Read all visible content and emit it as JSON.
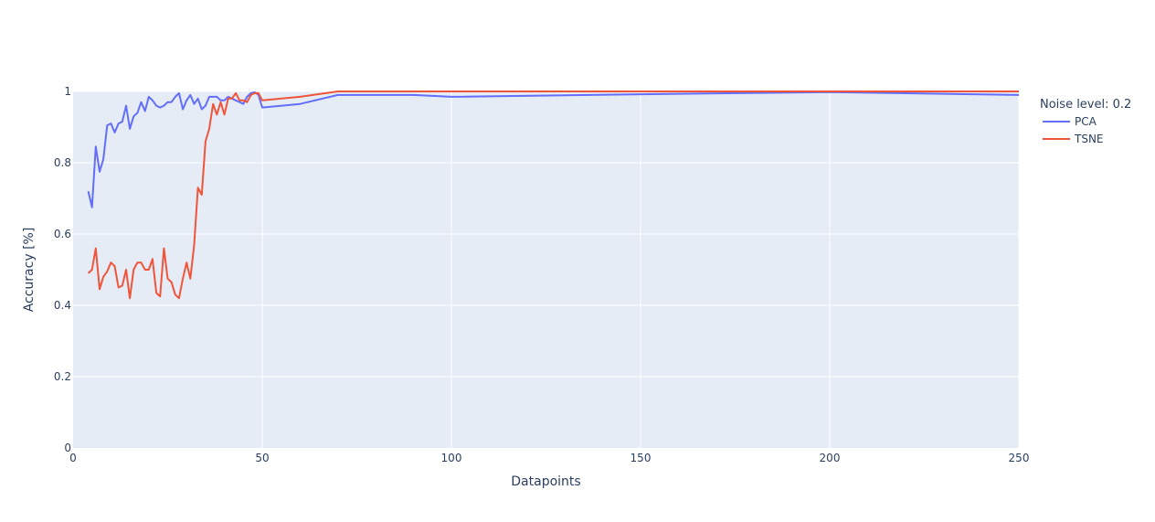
{
  "chart_data": {
    "type": "line",
    "title": "",
    "xlabel": "Datapoints",
    "ylabel": "Accuracy [%]",
    "xlim": [
      0,
      250
    ],
    "ylim": [
      0,
      1
    ],
    "x_ticks": [
      "0",
      "50",
      "100",
      "150",
      "200",
      "250"
    ],
    "y_ticks": [
      "0",
      "0.2",
      "0.4",
      "0.6",
      "0.8",
      "1"
    ],
    "grid": true,
    "legend": {
      "title": "Noise level: 0.2",
      "placement": "right"
    },
    "colors": {
      "background": "#e5ecf6",
      "grid": "#ffffff",
      "axis_text": "#2a3f5f"
    },
    "series": [
      {
        "name": "PCA",
        "color": "#636efa",
        "x": [
          4,
          5,
          6,
          7,
          8,
          9,
          10,
          11,
          12,
          13,
          14,
          15,
          16,
          17,
          18,
          19,
          20,
          21,
          22,
          23,
          24,
          25,
          26,
          27,
          28,
          29,
          30,
          31,
          32,
          33,
          34,
          35,
          36,
          37,
          38,
          39,
          40,
          41,
          42,
          43,
          44,
          45,
          46,
          47,
          48,
          49,
          50,
          60,
          70,
          80,
          90,
          100,
          150,
          200,
          250
        ],
        "y": [
          0.72,
          0.675,
          0.845,
          0.775,
          0.81,
          0.905,
          0.91,
          0.885,
          0.91,
          0.915,
          0.96,
          0.895,
          0.93,
          0.94,
          0.97,
          0.945,
          0.985,
          0.975,
          0.96,
          0.955,
          0.96,
          0.97,
          0.97,
          0.985,
          0.995,
          0.95,
          0.975,
          0.99,
          0.965,
          0.98,
          0.95,
          0.96,
          0.985,
          0.985,
          0.985,
          0.975,
          0.975,
          0.985,
          0.98,
          0.975,
          0.97,
          0.965,
          0.985,
          0.995,
          0.998,
          0.99,
          0.955,
          0.965,
          0.99,
          0.99,
          0.99,
          0.985,
          0.992,
          0.998,
          0.99
        ]
      },
      {
        "name": "TSNE",
        "color": "#ef553b",
        "x": [
          4,
          5,
          6,
          7,
          8,
          9,
          10,
          11,
          12,
          13,
          14,
          15,
          16,
          17,
          18,
          19,
          20,
          21,
          22,
          23,
          24,
          25,
          26,
          27,
          28,
          29,
          30,
          31,
          32,
          33,
          34,
          35,
          36,
          37,
          38,
          39,
          40,
          41,
          42,
          43,
          44,
          45,
          46,
          47,
          48,
          49,
          50,
          60,
          70,
          80,
          90,
          100,
          150,
          200,
          250
        ],
        "y": [
          0.49,
          0.5,
          0.56,
          0.445,
          0.48,
          0.495,
          0.52,
          0.51,
          0.45,
          0.455,
          0.5,
          0.42,
          0.5,
          0.52,
          0.52,
          0.5,
          0.5,
          0.53,
          0.435,
          0.425,
          0.56,
          0.475,
          0.465,
          0.43,
          0.42,
          0.475,
          0.52,
          0.475,
          0.57,
          0.73,
          0.71,
          0.86,
          0.895,
          0.965,
          0.935,
          0.97,
          0.935,
          0.98,
          0.98,
          0.995,
          0.975,
          0.975,
          0.97,
          0.99,
          0.995,
          0.995,
          0.975,
          0.985,
          1.0,
          1.0,
          1.0,
          1.0,
          1.0,
          1.0,
          1.0
        ]
      }
    ]
  }
}
